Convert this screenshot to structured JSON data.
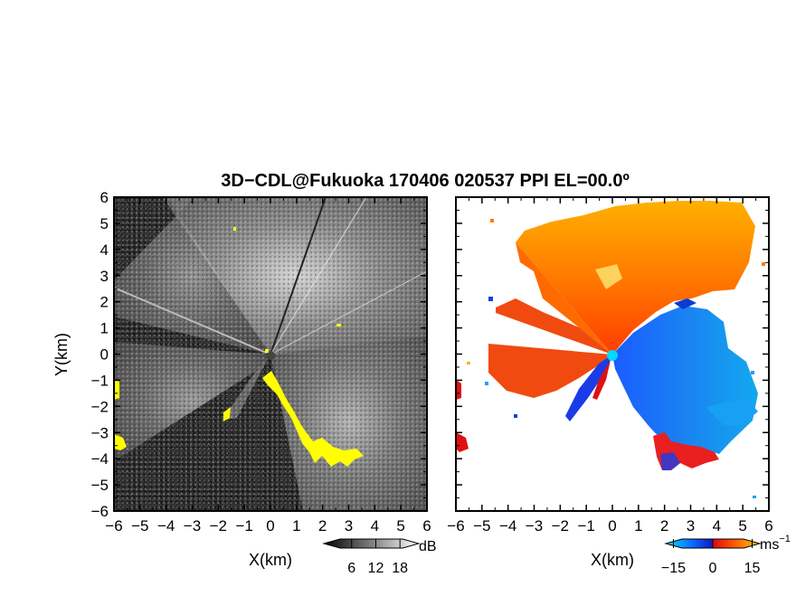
{
  "chart_data": {
    "title": "3D−CDL@Fukuoka 170406 020537 PPI EL=00.0º",
    "panels": [
      {
        "type": "heatmap",
        "variable": "signal-to-noise ratio (grayscale)",
        "xlabel": "X(km)",
        "ylabel": "Y(km)",
        "xlim": [
          -6,
          6
        ],
        "ylim": [
          -6,
          6
        ],
        "xticks": [
          "−6",
          "−5",
          "−4",
          "−3",
          "−2",
          "−1",
          "0",
          "1",
          "2",
          "3",
          "4",
          "5",
          "6"
        ],
        "yticks": [
          "6",
          "5",
          "4",
          "3",
          "2",
          "1",
          "0",
          "−1",
          "−2",
          "−3",
          "−4",
          "−5",
          "−6"
        ],
        "colorbar": {
          "unit": "dB",
          "range": [
            0,
            22
          ],
          "tick_labels": [
            "6",
            "12",
            "18"
          ],
          "colors": [
            "#000000",
            "#ffffff"
          ]
        },
        "highlight": {
          "color": "#ffff00",
          "meaning": "strong echo areas (yellow)"
        }
      },
      {
        "type": "heatmap",
        "variable": "Doppler radial velocity",
        "xlabel": "X(km)",
        "ylabel": "",
        "xlim": [
          -6,
          6
        ],
        "ylim": [
          -6,
          6
        ],
        "xticks": [
          "−6",
          "−5",
          "−4",
          "−3",
          "−2",
          "−1",
          "0",
          "1",
          "2",
          "3",
          "4",
          "5",
          "6"
        ],
        "colorbar": {
          "unit": "ms⁻¹",
          "range": [
            -20,
            20
          ],
          "tick_labels": [
            "−15",
            "0",
            "15"
          ],
          "colors": [
            "#00e0ff",
            "#0a64ff",
            "#1020c0",
            "#e01010",
            "#ff6000",
            "#ffd000"
          ]
        }
      }
    ]
  }
}
